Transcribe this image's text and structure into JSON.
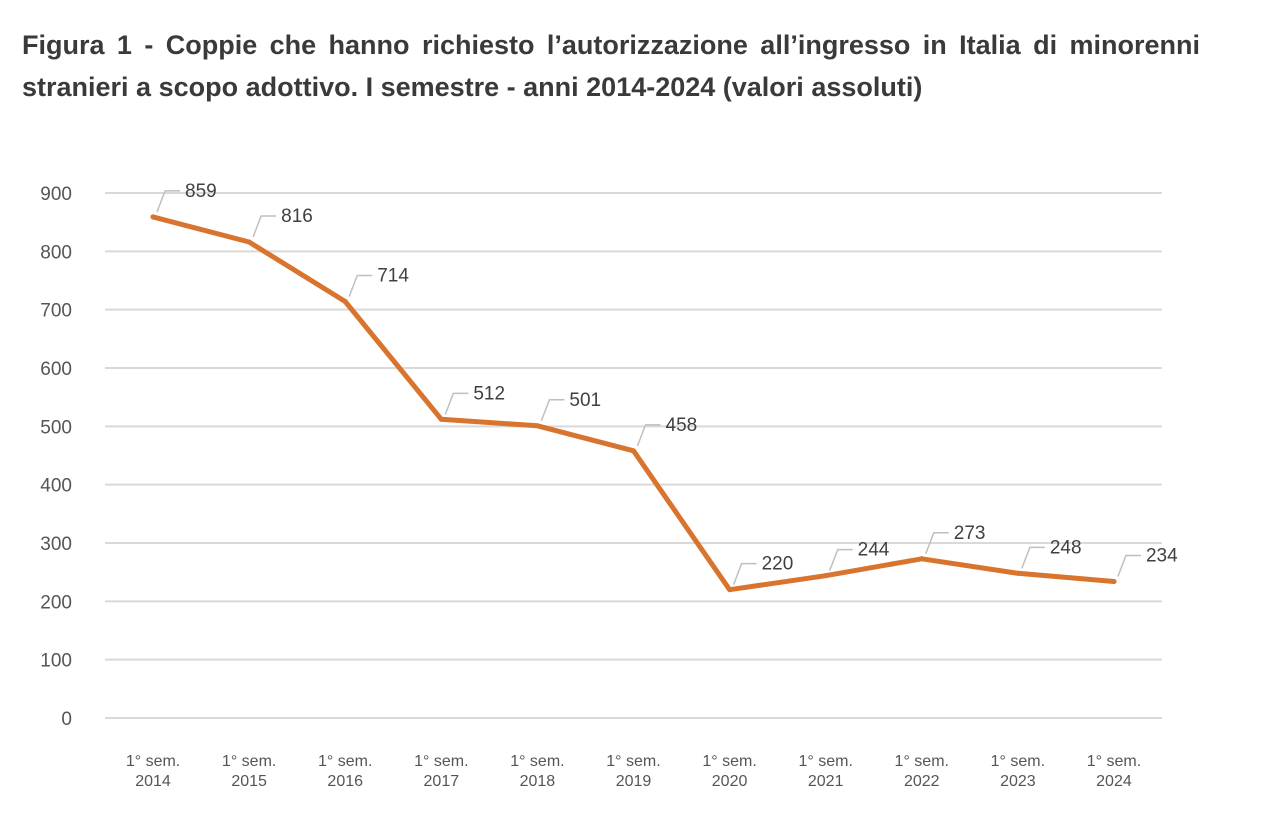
{
  "figure": {
    "title": "Figura 1 - Coppie che hanno richiesto l’autorizzazione all’ingresso in Italia di minorenni stranieri a scopo adottivo. I semestre - anni 2014-2024 (valori assoluti)"
  },
  "chart_data": {
    "type": "line",
    "title": "Figura 1 - Coppie che hanno richiesto l’autorizzazione all’ingresso in Italia di minorenni stranieri a scopo adottivo. I semestre - anni 2014-2024 (valori assoluti)",
    "categories": [
      [
        "1° sem.",
        "2014"
      ],
      [
        "1° sem.",
        "2015"
      ],
      [
        "1° sem.",
        "2016"
      ],
      [
        "1° sem.",
        "2017"
      ],
      [
        "1° sem.",
        "2018"
      ],
      [
        "1° sem.",
        "2019"
      ],
      [
        "1° sem.",
        "2020"
      ],
      [
        "1° sem.",
        "2021"
      ],
      [
        "1° sem.",
        "2022"
      ],
      [
        "1° sem.",
        "2023"
      ],
      [
        "1° sem.",
        "2024"
      ]
    ],
    "series": [
      {
        "values": [
          859,
          816,
          714,
          512,
          501,
          458,
          220,
          244,
          273,
          248,
          234
        ],
        "color": "#D9742F"
      }
    ],
    "ylim": [
      0,
      900
    ],
    "yticks": [
      0,
      100,
      200,
      300,
      400,
      500,
      600,
      700,
      800,
      900
    ],
    "grid": true,
    "legend": "none",
    "data_labels": true,
    "colors": {
      "line": "#D9742F",
      "grid": "#D9D9D9",
      "leader": "#BFBFBF"
    }
  }
}
